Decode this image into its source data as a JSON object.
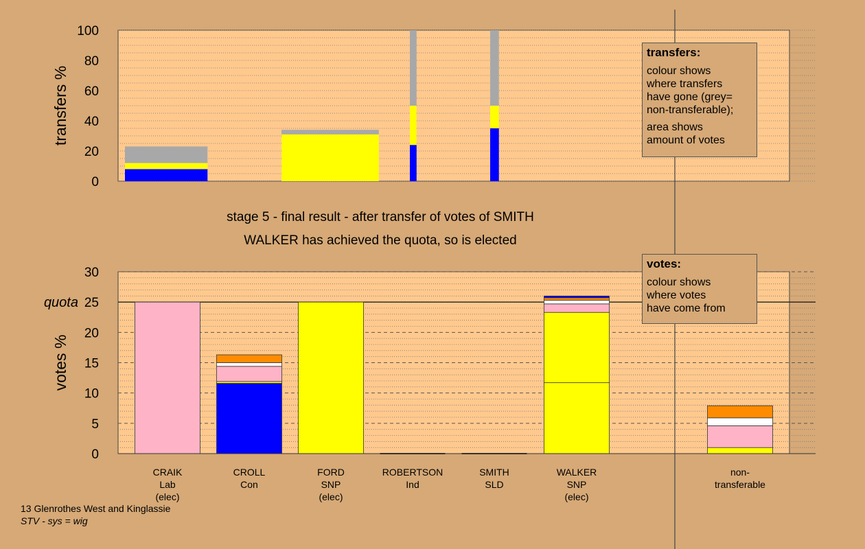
{
  "captions": {
    "stage": "stage 5 - final result - after transfer of votes of SMITH",
    "result": "WALKER has achieved the quota, so is elected"
  },
  "legends": {
    "transfers": {
      "title": "transfers:",
      "lines": [
        "colour shows",
        "where transfers",
        "have gone (grey=",
        "non-transferable);",
        "area shows",
        "amount of votes"
      ]
    },
    "votes": {
      "title": "votes:",
      "lines": [
        "colour shows",
        "where votes",
        "have come from"
      ]
    }
  },
  "footer": {
    "constituency": "13 Glenrothes West and Kinglassie",
    "system": "STV - sys = wig"
  },
  "colors": {
    "background": "#d6a977",
    "plot": "#ffc98e",
    "Lab": "#ffb3c6",
    "Con": "#0000ff",
    "SNP": "#ffff00",
    "Ind": "#ffffff",
    "SLD": "#ff8c00",
    "nontransferable": "#a8a8a8"
  },
  "chart_data": [
    {
      "type": "bar",
      "subtype": "stacked-variable-width",
      "ylabel": "transfers %",
      "ylim": [
        0,
        100
      ],
      "yticks": [
        0,
        20,
        40,
        60,
        80,
        100
      ],
      "grid": true,
      "bars": [
        {
          "stage": 1,
          "width_pct": 12.3,
          "segments": [
            {
              "color": "Con",
              "value": 8
            },
            {
              "color": "SNP",
              "value": 4
            },
            {
              "color": "nontransferable",
              "value": 11
            }
          ]
        },
        {
          "stage": 2,
          "width_pct": 14.5,
          "segments": [
            {
              "color": "SNP",
              "value": 31
            },
            {
              "color": "nontransferable",
              "value": 3
            }
          ]
        },
        {
          "stage": 3,
          "width_pct": 1.0,
          "segments": [
            {
              "color": "Con",
              "value": 24
            },
            {
              "color": "SNP",
              "value": 26
            },
            {
              "color": "nontransferable",
              "value": 50
            }
          ]
        },
        {
          "stage": 4,
          "width_pct": 1.3,
          "segments": [
            {
              "color": "Con",
              "value": 35
            },
            {
              "color": "SNP",
              "value": 15
            },
            {
              "color": "nontransferable",
              "value": 50
            }
          ]
        }
      ]
    },
    {
      "type": "bar",
      "subtype": "stacked",
      "ylabel": "votes %",
      "ylim": [
        0,
        30
      ],
      "yticks": [
        0,
        5,
        10,
        15,
        20,
        25,
        30
      ],
      "quota": {
        "label": "quota",
        "value": 25
      },
      "grid": true,
      "candidates": [
        {
          "name": "CRAIK",
          "party": "Lab",
          "status": "(elec)",
          "segments": [
            {
              "color": "Lab",
              "value": 25
            }
          ]
        },
        {
          "name": "CROLL",
          "party": "Con",
          "status": "",
          "segments": [
            {
              "color": "Con",
              "value": 11.6
            },
            {
              "color": "SNP",
              "value": 0.3
            },
            {
              "color": "Lab",
              "value": 2.5
            },
            {
              "color": "Ind",
              "value": 0.6
            },
            {
              "color": "SLD",
              "value": 1.3
            }
          ]
        },
        {
          "name": "FORD",
          "party": "SNP",
          "status": "(elec)",
          "segments": [
            {
              "color": "SNP",
              "value": 25
            }
          ]
        },
        {
          "name": "ROBERTSON",
          "party": "Ind",
          "status": "",
          "segments": [
            {
              "color": "Ind",
              "value": 0
            }
          ]
        },
        {
          "name": "SMITH",
          "party": "SLD",
          "status": "",
          "segments": [
            {
              "color": "SLD",
              "value": 0
            }
          ]
        },
        {
          "name": "WALKER",
          "party": "SNP",
          "status": "(elec)",
          "segments": [
            {
              "color": "SNP",
              "value": 11.7
            },
            {
              "color": "SNP",
              "value": 11.6
            },
            {
              "color": "Lab",
              "value": 1.4
            },
            {
              "color": "Ind",
              "value": 0.6
            },
            {
              "color": "SLD",
              "value": 0.4
            },
            {
              "color": "Con",
              "value": 0.3
            }
          ]
        },
        {
          "name": "non-",
          "party": "transferable",
          "status": "",
          "segments": [
            {
              "color": "SNP",
              "value": 1.0
            },
            {
              "color": "Lab",
              "value": 3.6
            },
            {
              "color": "Ind",
              "value": 1.3
            },
            {
              "color": "SLD",
              "value": 2.0
            }
          ]
        }
      ]
    }
  ]
}
